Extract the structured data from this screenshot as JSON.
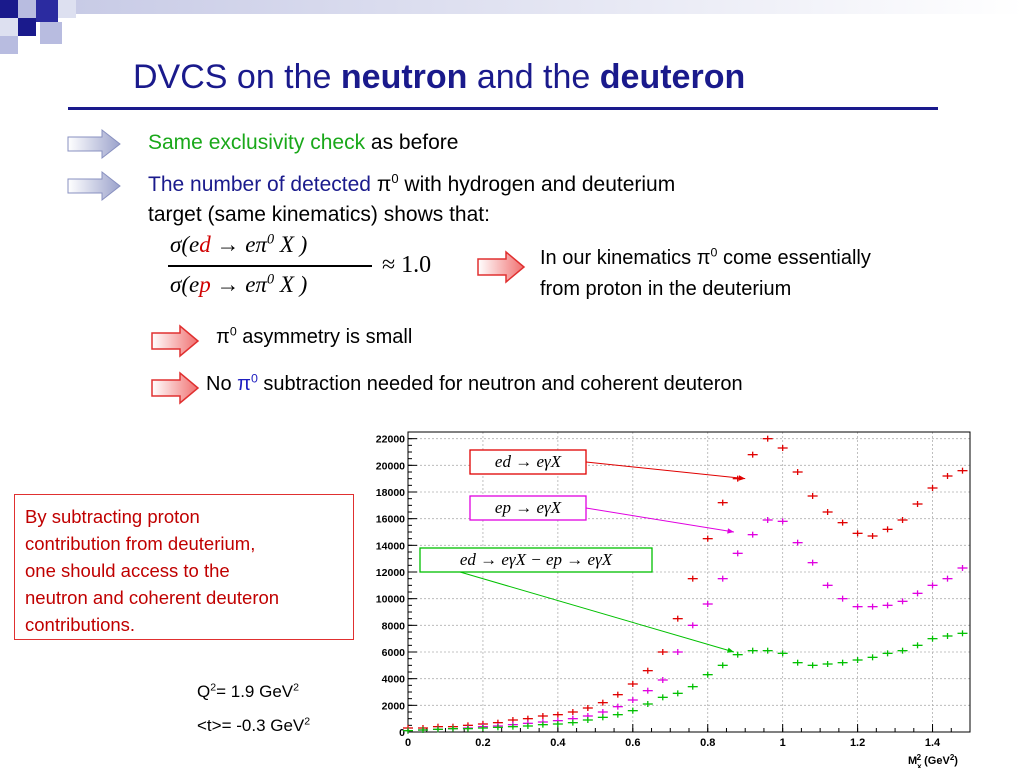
{
  "title": {
    "part1": "DVCS on the ",
    "bold1": "neutron",
    "part2": " and the ",
    "bold2": "deuteron"
  },
  "bullets": {
    "b1_green": "Same exclusivity check",
    "b1_rest": " as before",
    "b2_blue": "The number of detected ",
    "b2_pi": "π",
    "b2_sup": "0",
    "b2_rest": " with hydrogen and deuterium",
    "b2_line2": "target (same kinematics) shows that:"
  },
  "formula": {
    "approx": "≈ 1.0",
    "num_pre": "σ(e",
    "num_red": "d",
    "num_post": " → eπ",
    "den_pre": "σ(e",
    "den_red": "p",
    "den_post": " → eπ",
    "sup0": "0",
    "x": " X )"
  },
  "result": {
    "line1_pre": "In our kinematics π",
    "line1_sup": "0",
    "line1_post": " come essentially",
    "line2": "from proton in the deuterium"
  },
  "asym": {
    "pi": "π",
    "sup": "0",
    "rest": " asymmetry is small"
  },
  "nosub": {
    "pre": "No ",
    "pi": "π",
    "sup": "0",
    "rest": " subtraction needed for neutron and coherent deuteron"
  },
  "callout": {
    "lines": [
      "By subtracting proton",
      "contribution from deuterium,",
      "one should access to the",
      "neutron and coherent deuteron",
      "contributions."
    ]
  },
  "kinematics": {
    "q2_pre": "Q",
    "q2_sup": "2",
    "q2_mid": "= 1.9 GeV",
    "q2_sup2": "2",
    "t_pre": "<t>= -0.3 GeV",
    "t_sup": "2"
  },
  "chart_data": {
    "type": "scatter",
    "xlabel": "M",
    "xlabel_sub": "x",
    "xlabel_sup": "2",
    "xlabel_unit": "(GeV",
    "xlabel_unit_sup": "2",
    "xlabel_close": ")",
    "xlim": [
      0,
      1.5
    ],
    "ylim": [
      0,
      22500
    ],
    "x_ticks": [
      "0",
      "0.2",
      "0.4",
      "0.6",
      "0.8",
      "1",
      "1.2",
      "1.4"
    ],
    "x_tick_values": [
      0,
      0.2,
      0.4,
      0.6,
      0.8,
      1.0,
      1.2,
      1.4
    ],
    "y_ticks": [
      "0",
      "2000",
      "4000",
      "6000",
      "8000",
      "10000",
      "12000",
      "14000",
      "16000",
      "18000",
      "20000",
      "22000"
    ],
    "y_tick_values": [
      0,
      2000,
      4000,
      6000,
      8000,
      10000,
      12000,
      14000,
      16000,
      18000,
      20000,
      22000
    ],
    "grid": true,
    "series": [
      {
        "name": "ed → eγX",
        "color": "#e00000",
        "x": [
          0.0,
          0.04,
          0.08,
          0.12,
          0.16,
          0.2,
          0.24,
          0.28,
          0.32,
          0.36,
          0.4,
          0.44,
          0.48,
          0.52,
          0.56,
          0.6,
          0.64,
          0.68,
          0.72,
          0.76,
          0.8,
          0.84,
          0.88,
          0.92,
          0.96,
          1.0,
          1.04,
          1.08,
          1.12,
          1.16,
          1.2,
          1.24,
          1.28,
          1.32,
          1.36,
          1.4,
          1.44,
          1.48
        ],
        "y": [
          300,
          300,
          400,
          400,
          500,
          600,
          700,
          900,
          1000,
          1200,
          1300,
          1500,
          1800,
          2200,
          2800,
          3600,
          4600,
          6000,
          8500,
          11500,
          14500,
          17200,
          19000,
          20800,
          22000,
          21300,
          19500,
          17700,
          16500,
          15700,
          14900,
          14700,
          15200,
          15900,
          17100,
          18300,
          19200,
          19600
        ]
      },
      {
        "name": "ep → eγX",
        "color": "#e000e0",
        "x": [
          0.0,
          0.04,
          0.08,
          0.12,
          0.16,
          0.2,
          0.24,
          0.28,
          0.32,
          0.36,
          0.4,
          0.44,
          0.48,
          0.52,
          0.56,
          0.6,
          0.64,
          0.68,
          0.72,
          0.76,
          0.8,
          0.84,
          0.88,
          0.92,
          0.96,
          1.0,
          1.04,
          1.08,
          1.12,
          1.16,
          1.2,
          1.24,
          1.28,
          1.32,
          1.36,
          1.4,
          1.44,
          1.48
        ],
        "y": [
          100,
          150,
          200,
          250,
          300,
          400,
          450,
          550,
          650,
          750,
          850,
          1000,
          1200,
          1500,
          1900,
          2400,
          3100,
          3900,
          6000,
          8000,
          9600,
          11500,
          13400,
          14800,
          15900,
          15800,
          14200,
          12700,
          11000,
          10000,
          9400,
          9400,
          9500,
          9800,
          10400,
          11000,
          11500,
          12300
        ]
      },
      {
        "name": "ed → eγX − ep → eγX",
        "color": "#00c000",
        "x": [
          0.0,
          0.04,
          0.08,
          0.12,
          0.16,
          0.2,
          0.24,
          0.28,
          0.32,
          0.36,
          0.4,
          0.44,
          0.48,
          0.52,
          0.56,
          0.6,
          0.64,
          0.68,
          0.72,
          0.76,
          0.8,
          0.84,
          0.88,
          0.92,
          0.96,
          1.0,
          1.04,
          1.08,
          1.12,
          1.16,
          1.2,
          1.24,
          1.28,
          1.32,
          1.36,
          1.4,
          1.44,
          1.48
        ],
        "y": [
          100,
          150,
          200,
          250,
          250,
          300,
          350,
          400,
          450,
          550,
          600,
          700,
          900,
          1100,
          1300,
          1600,
          2100,
          2600,
          2900,
          3400,
          4300,
          5000,
          5800,
          6100,
          6100,
          5900,
          5200,
          5000,
          5100,
          5200,
          5400,
          5600,
          5900,
          6100,
          6500,
          7000,
          7200,
          7400
        ]
      }
    ],
    "annotations": [
      {
        "text": "ed → eγX",
        "color": "#e00000"
      },
      {
        "text": "ep → eγX",
        "color": "#e000e0"
      },
      {
        "text": "ed → eγX − ep → eγX",
        "color": "#00c000"
      }
    ]
  }
}
